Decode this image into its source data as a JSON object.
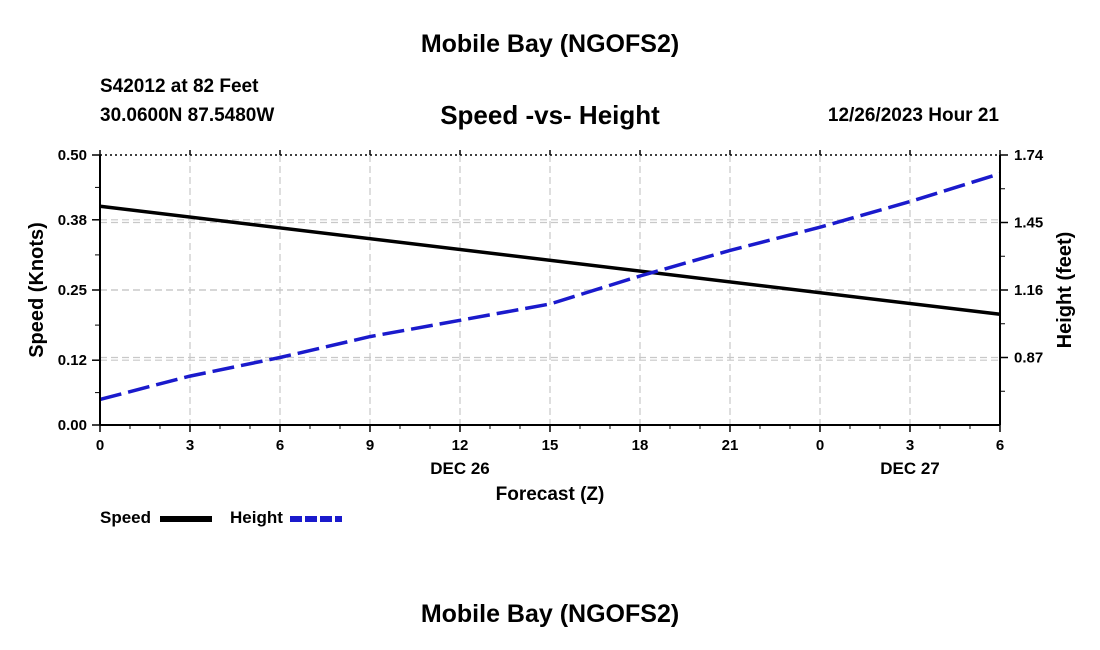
{
  "header": {
    "title": "Mobile Bay (NGOFS2)",
    "station": "S42012 at 82 Feet",
    "coords": "30.0600N  87.5480W",
    "subtitle": "Speed -vs- Height",
    "datetime": "12/26/2023 Hour 21"
  },
  "footer": {
    "title": "Mobile Bay (NGOFS2)"
  },
  "legend": {
    "speed_label": "Speed",
    "height_label": "Height"
  },
  "colors": {
    "speed": "#000000",
    "height": "#1a1acc",
    "grid": "#c8c8c8"
  },
  "chart_data": {
    "type": "line",
    "title": "Speed -vs- Height",
    "xlabel": "Forecast (Z)",
    "ylabel": "Speed (Knots)",
    "y2label": "Height (feet)",
    "x_hours": [
      0,
      3,
      6,
      9,
      12,
      15,
      18,
      21,
      24,
      27,
      30
    ],
    "x_tick_labels": [
      "0",
      "3",
      "6",
      "9",
      "12",
      "15",
      "18",
      "21",
      "0",
      "3",
      "6"
    ],
    "date_labels": [
      {
        "text": "DEC 26",
        "hour": 12
      },
      {
        "text": "DEC 27",
        "hour": 27
      }
    ],
    "xlim": [
      0,
      30
    ],
    "ylim": [
      0,
      0.5
    ],
    "y_ticks": [
      0.0,
      0.12,
      0.25,
      0.38,
      0.5
    ],
    "y_tick_labels": [
      "0.00",
      "0.12",
      "0.25",
      "0.38",
      "0.50"
    ],
    "y2lim": [
      0.58,
      1.74
    ],
    "y2_ticks": [
      0.87,
      1.16,
      1.45,
      1.74
    ],
    "y2_tick_labels": [
      "0.87",
      "1.16",
      "1.45",
      "1.74"
    ],
    "series": [
      {
        "name": "Speed",
        "axis": "left",
        "style": "solid",
        "x": [
          0,
          30
        ],
        "values": [
          0.405,
          0.205
        ]
      },
      {
        "name": "Height",
        "axis": "right",
        "style": "dashed",
        "x": [
          0,
          3,
          6,
          9,
          12,
          15,
          18,
          21,
          24,
          27,
          30
        ],
        "values": [
          0.69,
          0.79,
          0.87,
          0.96,
          1.03,
          1.1,
          1.22,
          1.33,
          1.43,
          1.54,
          1.66
        ]
      }
    ]
  }
}
